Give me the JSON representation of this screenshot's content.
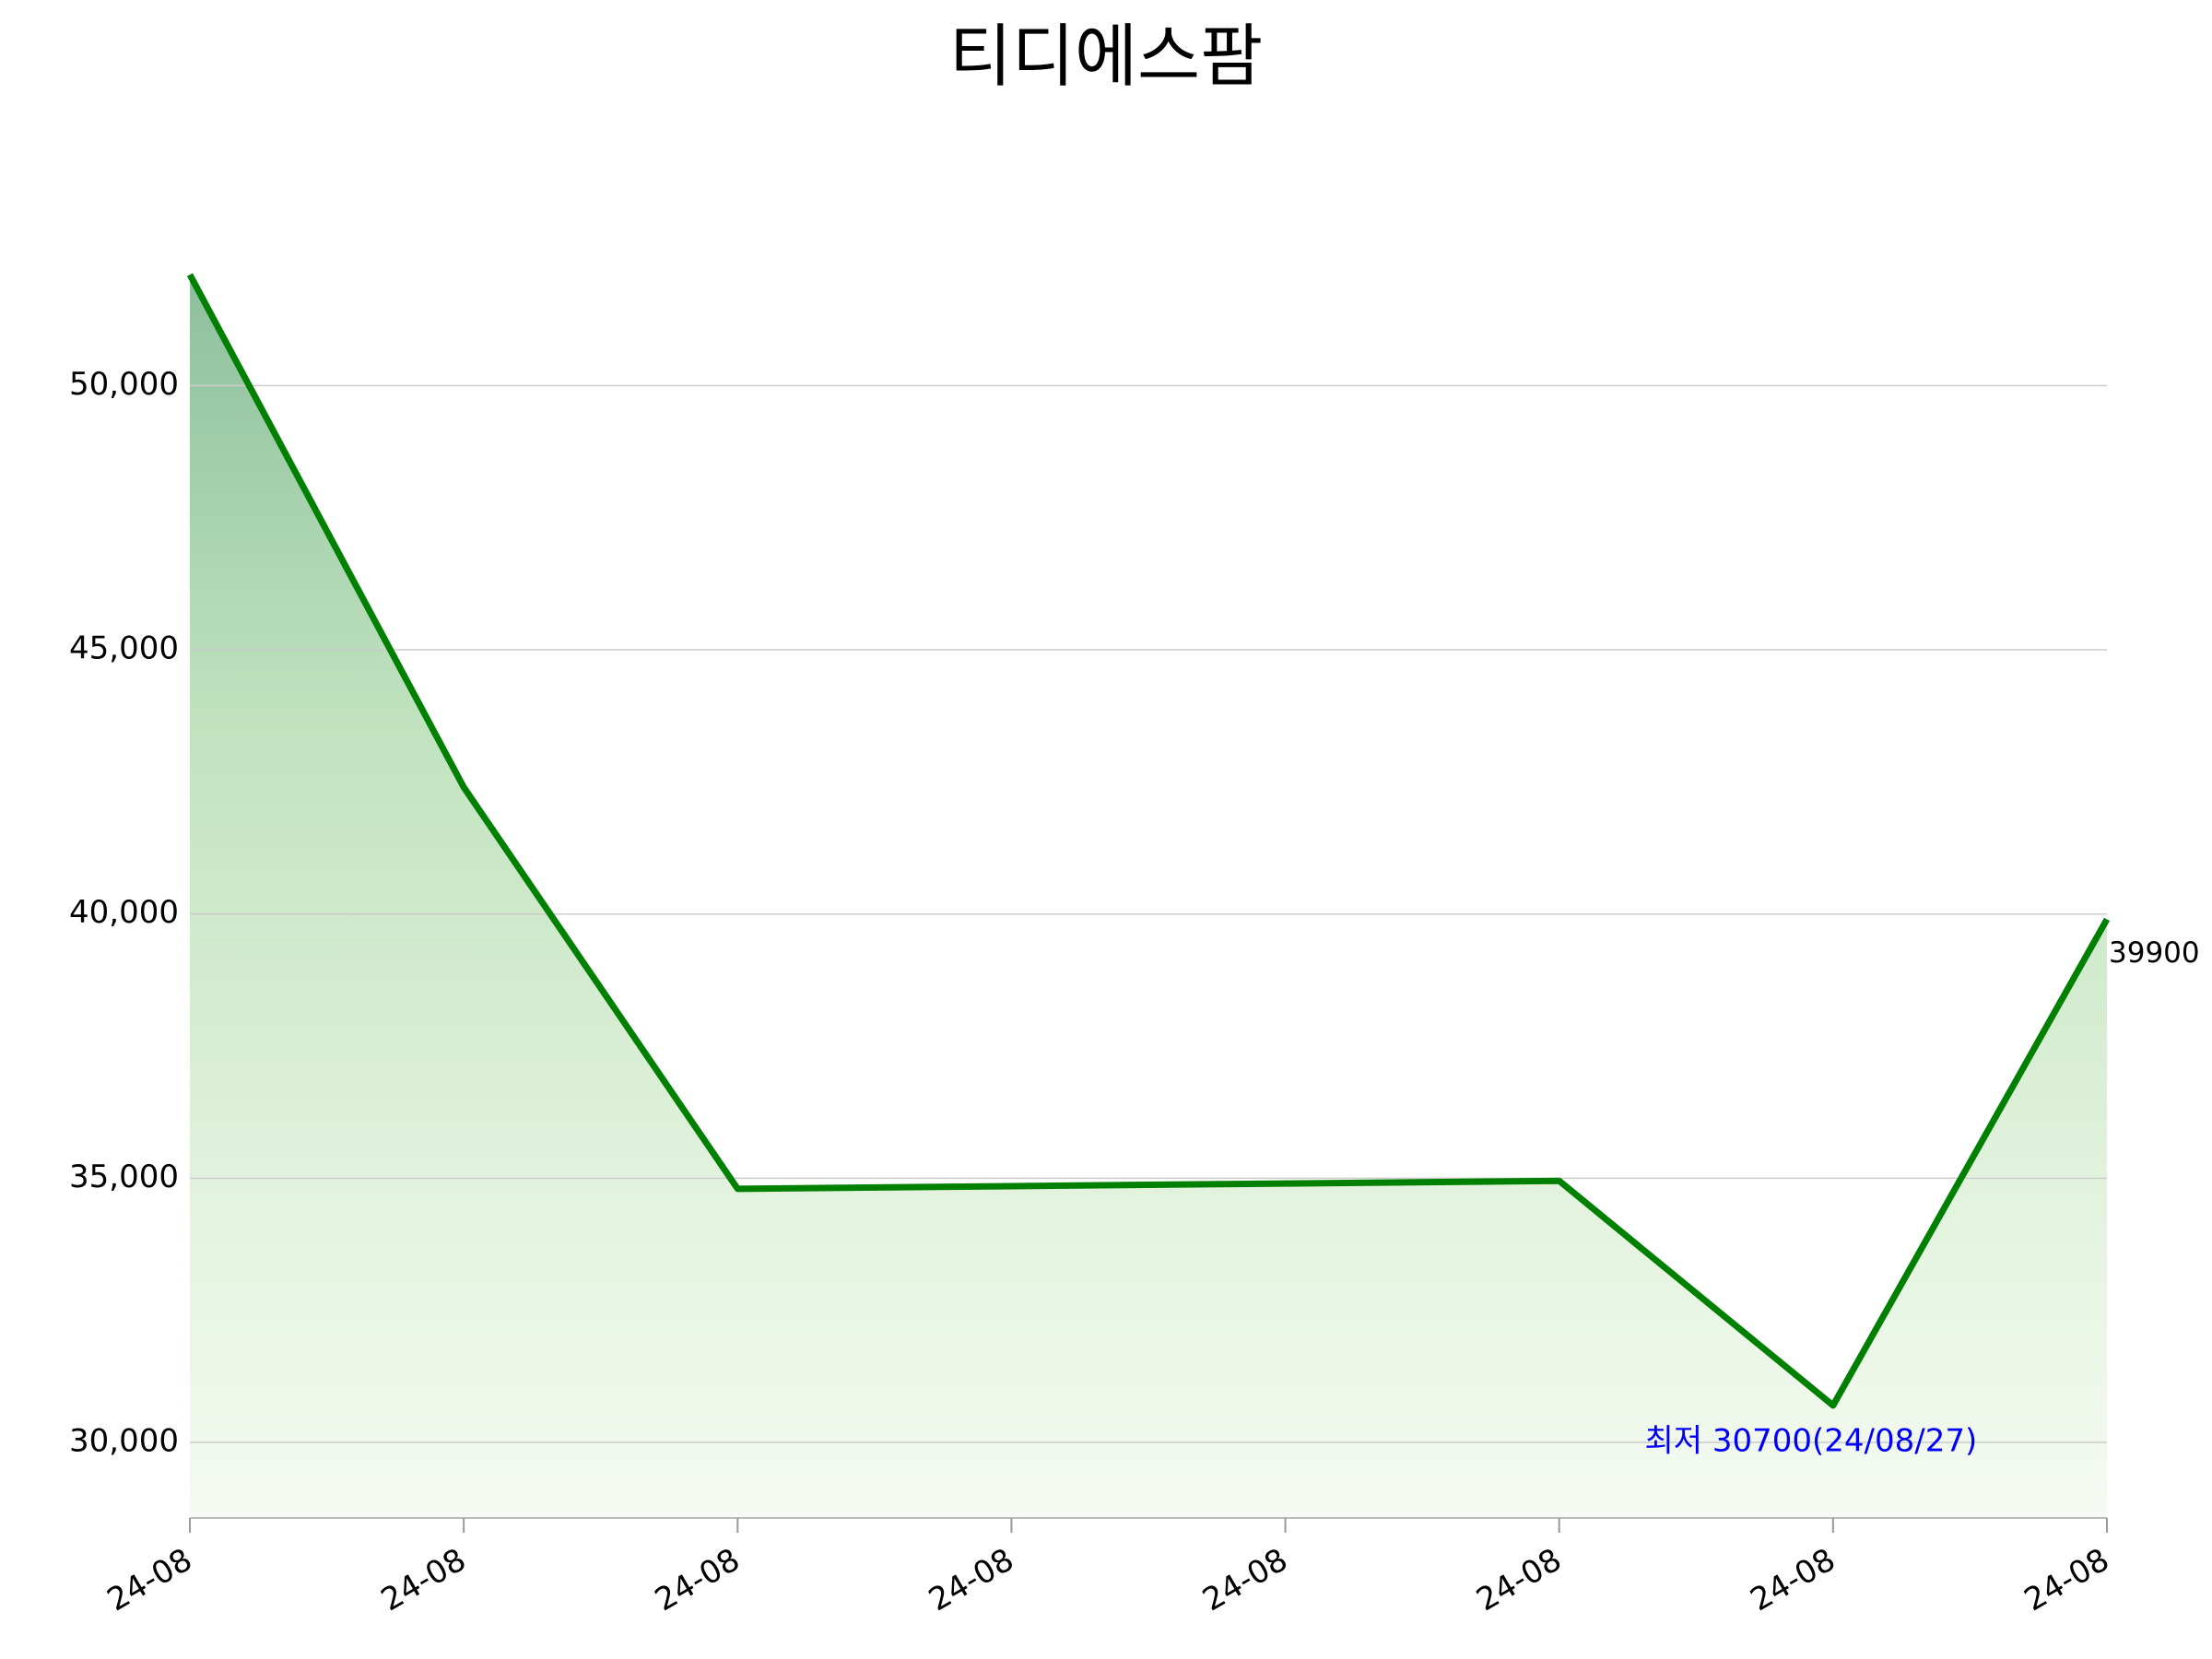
{
  "chart_data": {
    "type": "area-line",
    "title": "티디에스팜",
    "categories": [
      "24-08",
      "24-08",
      "24-08",
      "24-08",
      "24-08",
      "24-08",
      "24-08",
      "24-08"
    ],
    "values": [
      52100,
      42400,
      34800,
      34850,
      34900,
      34950,
      30700,
      39900
    ],
    "color": "#008000",
    "annotations": [
      {
        "text": "최저 30700(24/08/27)",
        "color": "#0000ff"
      }
    ],
    "ylim": [
      28570,
      52100
    ],
    "yticks": [
      {
        "value": 30000,
        "label": "30,000"
      },
      {
        "value": 35000,
        "label": "35,000"
      },
      {
        "value": 40000,
        "label": "40,000"
      },
      {
        "value": 45000,
        "label": "45,000"
      },
      {
        "value": 50000,
        "label": "50,000"
      }
    ],
    "grid": true
  }
}
